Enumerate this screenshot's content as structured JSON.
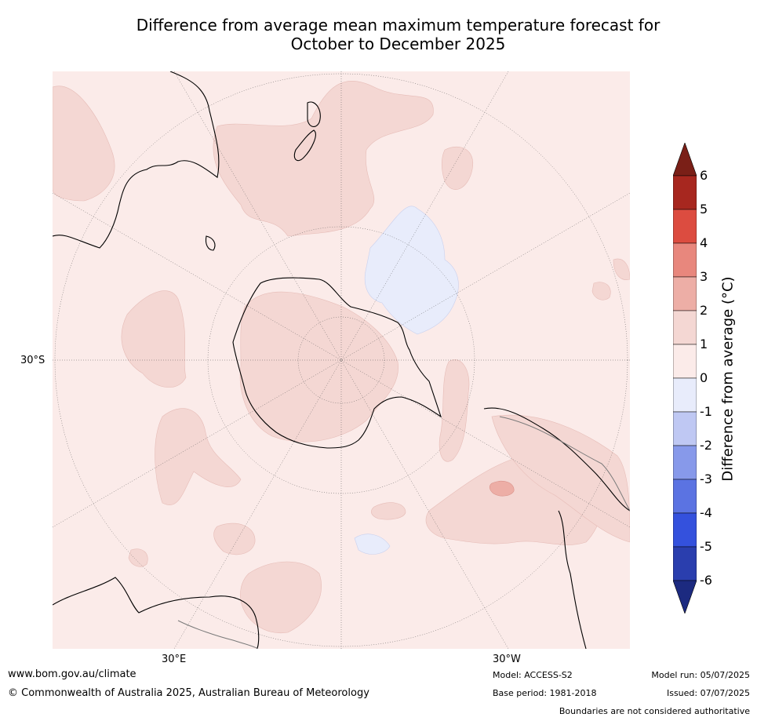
{
  "title": {
    "line1": "Difference from average mean maximum temperature forecast for",
    "line2": "October to December 2025"
  },
  "map": {
    "projection": "south-polar-stereographic",
    "labels": {
      "lat_left": "30°S",
      "lon_bottom_left": "30°E",
      "lon_bottom_right": "30°W"
    },
    "colors": {
      "ocean_bg": "#fbebe9",
      "class_1_2": "#f4d7d3",
      "class_2_3": "#edaea6",
      "class_minus1_0": "#e8ecfb",
      "coast": "#000000",
      "border": "#7a7a7a",
      "grid": "#555555"
    }
  },
  "colorbar": {
    "title": "Difference from average (°C)",
    "ticks": [
      "6",
      "5",
      "4",
      "3",
      "2",
      "1",
      "0",
      "-1",
      "-2",
      "-3",
      "-4",
      "-5",
      "-6"
    ],
    "bins": [
      {
        "color": "#a7271f"
      },
      {
        "color": "#dc4c40"
      },
      {
        "color": "#e8877d"
      },
      {
        "color": "#edaea6"
      },
      {
        "color": "#f4d7d3"
      },
      {
        "color": "#fbebe9"
      },
      {
        "color": "#e8ecfb"
      },
      {
        "color": "#bfc8f3"
      },
      {
        "color": "#8799ea"
      },
      {
        "color": "#5b73e2"
      },
      {
        "color": "#3451dd"
      },
      {
        "color": "#2a3eae"
      }
    ],
    "over_color": "#7a1f17",
    "under_color": "#1c2a80"
  },
  "footer": {
    "website": "www.bom.gov.au/climate",
    "copyright": "© Commonwealth of Australia 2025, Australian Bureau of Meteorology",
    "model": "Model: ACCESS-S2",
    "base_period": "Base period: 1981-2018",
    "model_run": "Model run: 05/07/2025",
    "issued": "Issued: 07/07/2025",
    "disclaimer": "Boundaries are not considered authoritative"
  }
}
